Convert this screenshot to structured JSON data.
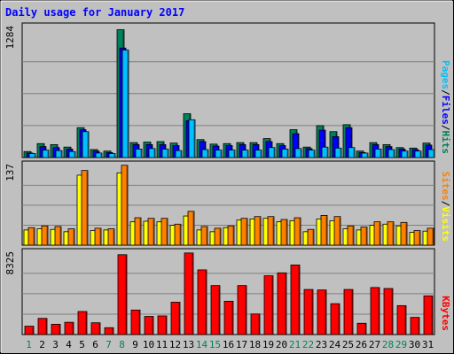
{
  "chart_data": {
    "type": "bar",
    "title": "Daily usage for January 2017",
    "categories": [
      "1",
      "2",
      "3",
      "4",
      "5",
      "6",
      "7",
      "8",
      "9",
      "10",
      "11",
      "12",
      "13",
      "14",
      "15",
      "16",
      "17",
      "18",
      "19",
      "20",
      "21",
      "22",
      "23",
      "24",
      "25",
      "26",
      "27",
      "28",
      "29",
      "30",
      "31"
    ],
    "weekend_days": [
      "1",
      "7",
      "8",
      "14",
      "15",
      "21",
      "22",
      "28",
      "29"
    ],
    "colors": {
      "hits": "#00805c",
      "files": "#0000ff",
      "pages": "#00c0ff",
      "visits": "#ffff00",
      "sites": "#ff8000",
      "kbytes": "#ff0000",
      "title": "#0000ff",
      "weekday_label": "#000000",
      "weekend_label": "#00805c"
    },
    "panels": [
      {
        "name": "top",
        "ymax_label": "1284",
        "legend": [
          {
            "text": "Pages",
            "color": "#00c0ff"
          },
          {
            "text": "/",
            "color": "#000000"
          },
          {
            "text": "Files",
            "color": "#0000ff"
          },
          {
            "text": "/",
            "color": "#000000"
          },
          {
            "text": "Hits",
            "color": "#00805c"
          }
        ],
        "ylim": [
          0,
          1284
        ],
        "series": [
          {
            "name": "Hits",
            "values": [
              60,
              140,
              130,
              105,
              300,
              80,
              65,
              1284,
              150,
              155,
              160,
              145,
              440,
              180,
              135,
              140,
              150,
              150,
              190,
              140,
              280,
              105,
              320,
              260,
              330,
              65,
              150,
              130,
              100,
              95,
              145
            ]
          },
          {
            "name": "Files",
            "values": [
              45,
              110,
              100,
              85,
              280,
              65,
              50,
              1100,
              130,
              130,
              130,
              120,
              370,
              160,
              115,
              120,
              130,
              130,
              160,
              120,
              240,
              90,
              275,
              210,
              300,
              50,
              130,
              110,
              85,
              80,
              125
            ]
          },
          {
            "name": "Pages",
            "values": [
              40,
              75,
              70,
              60,
              260,
              45,
              40,
              1080,
              85,
              90,
              85,
              70,
              380,
              80,
              75,
              75,
              75,
              75,
              100,
              85,
              90,
              75,
              105,
              95,
              100,
              45,
              85,
              80,
              65,
              65,
              80
            ]
          }
        ]
      },
      {
        "name": "middle",
        "ymax_label": "137",
        "legend": [
          {
            "text": "Sites",
            "color": "#ff8000"
          },
          {
            "text": "/",
            "color": "#000000"
          },
          {
            "text": "Visits",
            "color": "#ffff00"
          }
        ],
        "ylim": [
          0,
          137
        ],
        "series": [
          {
            "name": "Visits",
            "values": [
              26,
              28,
              27,
              23,
              120,
              25,
              26,
              124,
              40,
              41,
              40,
              34,
              50,
              26,
              23,
              30,
              43,
              45,
              46,
              40,
              42,
              23,
              45,
              42,
              28,
              26,
              34,
              36,
              33,
              22,
              24
            ]
          },
          {
            "name": "Sites",
            "values": [
              30,
              33,
              32,
              28,
              128,
              29,
              28,
              137,
              47,
              46,
              46,
              36,
              58,
              32,
              29,
              33,
              46,
              49,
              49,
              44,
              47,
              27,
              51,
              49,
              33,
              31,
              40,
              40,
              39,
              25,
              29
            ]
          }
        ]
      },
      {
        "name": "bottom",
        "ymax_label": "8325",
        "legend": [
          {
            "text": "KBytes",
            "color": "#ff0000"
          }
        ],
        "ylim": [
          0,
          8325
        ],
        "series": [
          {
            "name": "KBytes",
            "values": [
              850,
              1650,
              1050,
              1250,
              2350,
              1200,
              700,
              8150,
              2500,
              1850,
              1900,
              3300,
              8325,
              6600,
              5000,
              3400,
              5000,
              2100,
              6000,
              6300,
              7100,
              4600,
              4550,
              3150,
              4600,
              1150,
              4800,
              4700,
              2950,
              1750,
              3950
            ]
          }
        ]
      }
    ]
  }
}
